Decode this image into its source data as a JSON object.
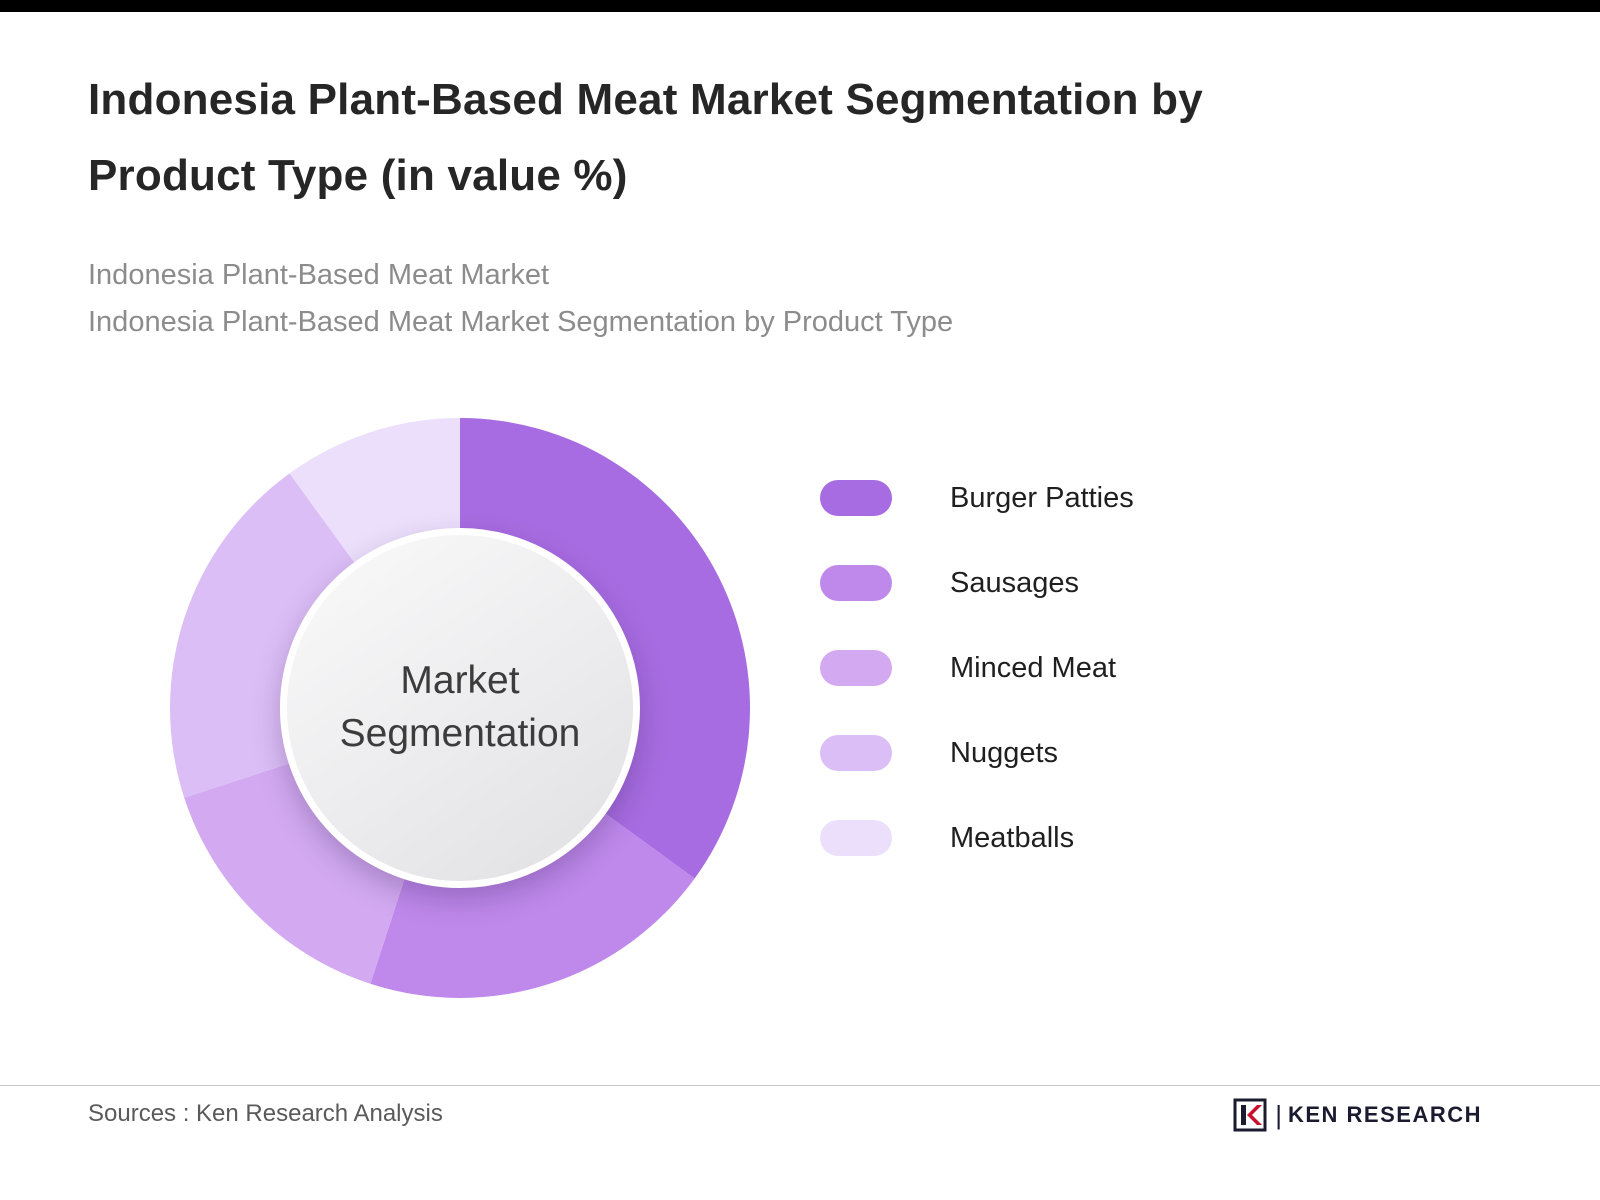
{
  "page": {
    "title_line1": "Indonesia Plant-Based Meat Market Segmentation by",
    "title_line2": "Product Type (in value %)",
    "subtitle_line1": "Indonesia Plant-Based Meat Market",
    "subtitle_line2": "Indonesia Plant-Based Meat Market Segmentation by Product Type"
  },
  "chart_data": {
    "type": "pie",
    "variant": "donut",
    "title": "Indonesia Plant-Based Meat Market Segmentation by Product Type (in value %)",
    "center_label_line1": "Market",
    "center_label_line2": "Segmentation",
    "categories": [
      "Burger Patties",
      "Sausages",
      "Minced Meat",
      "Nuggets",
      "Meatballs"
    ],
    "values": [
      35,
      20,
      15,
      20,
      10
    ],
    "colors": [
      "#a76ce1",
      "#bf89ec",
      "#d3aaf2",
      "#dcbef6",
      "#ecdffb"
    ],
    "legend_position": "right",
    "start_angle_deg": 0,
    "direction": "clockwise"
  },
  "footer": {
    "source_text": "Sources : Ken Research Analysis",
    "logo_text": "KEN RESEARCH",
    "logo_sep": "|",
    "logo_accent_color": "#c8102e",
    "logo_dark_color": "#1b1b2f"
  }
}
